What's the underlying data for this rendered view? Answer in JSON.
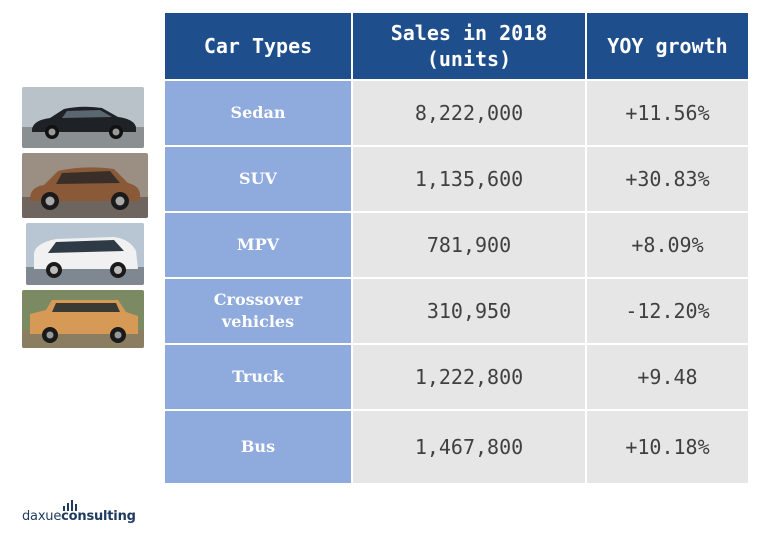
{
  "table": {
    "headers": [
      "Car Types",
      "Sales in 2018 (units)",
      "YOY growth"
    ],
    "rows": [
      {
        "type": "Sedan",
        "sales": "8,222,000",
        "growth": "+11.56%"
      },
      {
        "type": "SUV",
        "sales": "1,135,600",
        "growth": "+30.83%"
      },
      {
        "type": "MPV",
        "sales": "781,900",
        "growth": "+8.09%"
      },
      {
        "type": "Crossover vehicles",
        "sales": "310,950",
        "growth": "-12.20%"
      },
      {
        "type": "Truck",
        "sales": "1,222,800",
        "growth": "+9.48"
      },
      {
        "type": "Bus",
        "sales": "1,467,800",
        "growth": "+10.18%"
      }
    ]
  },
  "logo": {
    "part1": "daxue",
    "part2": "consulting"
  },
  "colors": {
    "header": "#1f4e8c",
    "type_cell": "#8faadc",
    "value_cell": "#e6e6e6"
  }
}
